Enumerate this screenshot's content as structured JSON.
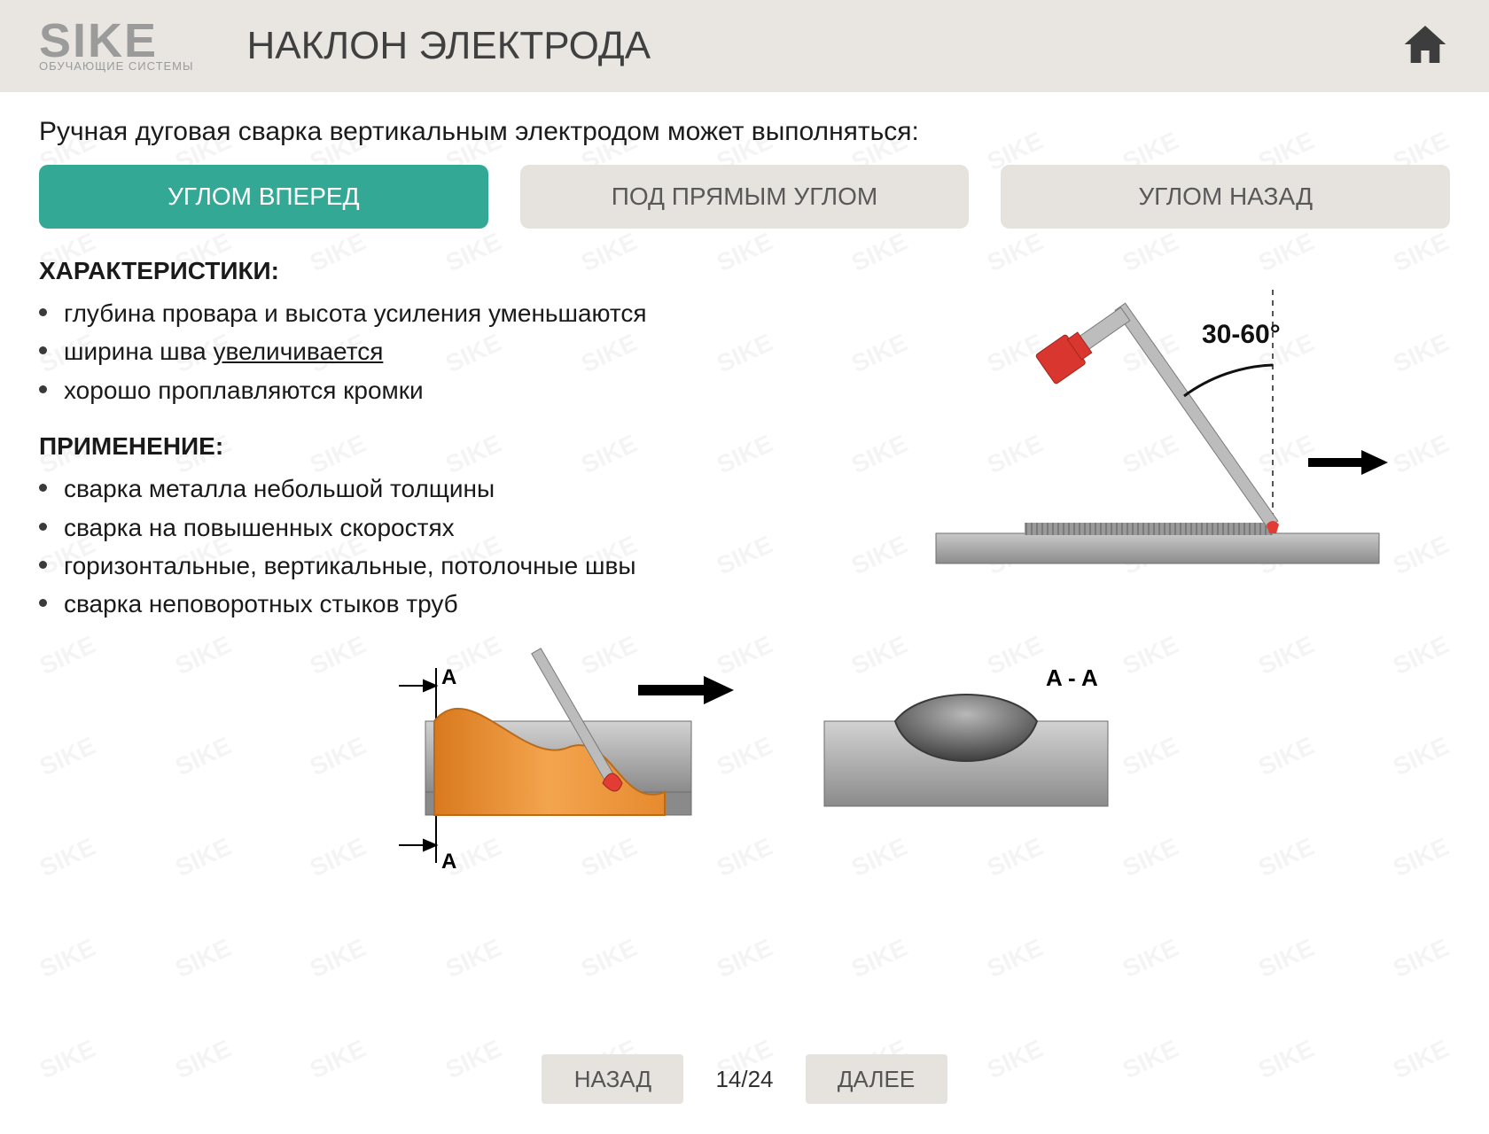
{
  "logo": {
    "main": "SIKE",
    "sub": "ОБУЧАЮЩИЕ СИСТЕМЫ"
  },
  "title": "НАКЛОН ЭЛЕКТРОДА",
  "intro": "Ручная дуговая сварка вертикальным электродом может выполняться:",
  "tabs": {
    "t1": "УГЛОМ ВПЕРЕД",
    "t2": "ПОД ПРЯМЫМ УГЛОМ",
    "t3": "УГЛОМ НАЗАД"
  },
  "sections": {
    "characteristics": {
      "title": "ХАРАКТЕРИСТИКИ:",
      "items": {
        "c1": "глубина провара и высота усиления уменьшаются",
        "c2_a": "ширина шва ",
        "c2_b": "увеличивается",
        "c3": "хорошо проплавляются кромки"
      }
    },
    "application": {
      "title": "ПРИМЕНЕНИЕ:",
      "items": {
        "a1": "сварка металла небольшой толщины",
        "a2": "сварка на повышенных скоростях",
        "a3": "горизонтальные, вертикальные, потолочные швы",
        "a4": "сварка неповоротных стыков труб"
      }
    }
  },
  "diagram_right": {
    "angle_label": "30-60°",
    "colors": {
      "handle": "#d9362f",
      "rod": "#a7a7a7",
      "plate": "#a8a8a8",
      "plate_dark": "#7d7d7d",
      "weld_tip": "#e23d35"
    }
  },
  "diagram_bottom": {
    "section_label_top": "A",
    "section_label_bottom": "A",
    "section_view_label": "A - A",
    "colors": {
      "molten": "#e58a2f",
      "molten_hot": "#f2a04a",
      "rod": "#a7a7a7",
      "tip": "#e23d35",
      "steel": "#b4b4b4",
      "steel_dark": "#8b8b8b",
      "bead": "#5a5a5a"
    }
  },
  "footer": {
    "back": "НАЗАД",
    "page": "14/24",
    "next": "ДАЛЕЕ"
  },
  "watermark_text": "SIKE"
}
